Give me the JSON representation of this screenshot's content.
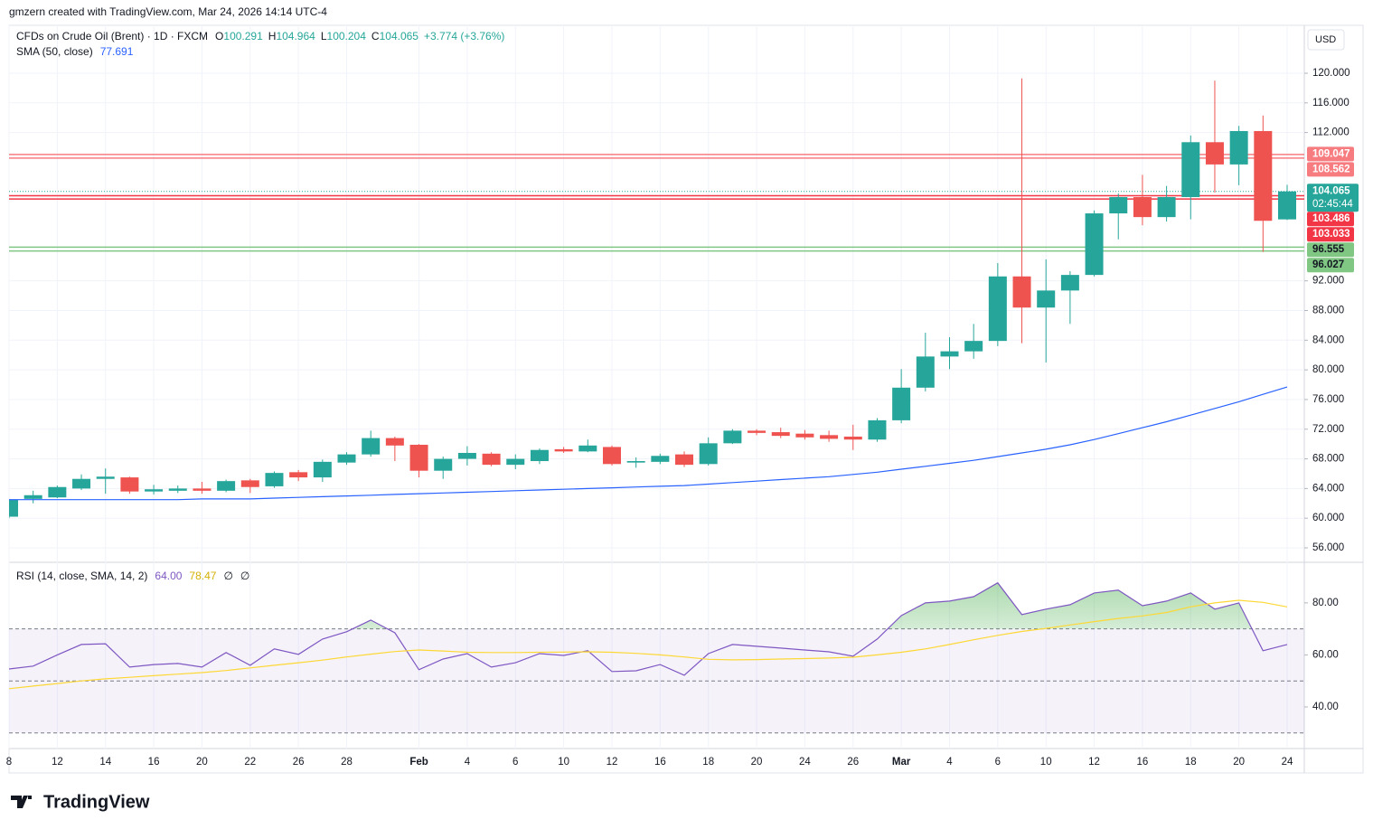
{
  "header": {
    "attribution": "gmzern created with TradingView.com, Mar 24, 2026 14:14 UTC-4",
    "currency": "USD",
    "logo": "TradingView"
  },
  "chart_data": [
    {
      "type": "candlestick",
      "title": "CFDs on Crude Oil (Brent) · 1D · FXCM",
      "ohlc_labels": [
        {
          "key": "O",
          "value": "100.291"
        },
        {
          "key": "H",
          "value": "104.964"
        },
        {
          "key": "L",
          "value": "100.204"
        },
        {
          "key": "C",
          "value": "104.065"
        }
      ],
      "change_label": "+3.774 (+3.76%)",
      "up_color": "#26a69a",
      "down_color": "#ef5350",
      "categories": [
        "8",
        null,
        "12",
        null,
        "14",
        null,
        "16",
        null,
        "20",
        null,
        "22",
        null,
        "26",
        null,
        "28",
        null,
        null,
        "Feb",
        null,
        "4",
        null,
        "6",
        null,
        "10",
        null,
        "12",
        null,
        "16",
        null,
        "18",
        null,
        "20",
        null,
        "24",
        null,
        "26",
        null,
        "Mar",
        null,
        "4",
        null,
        "6",
        null,
        "10",
        null,
        "12",
        null,
        "16",
        null,
        "18",
        null,
        "20",
        null,
        "24"
      ],
      "open": [
        60.2,
        62.6,
        62.8,
        64.0,
        65.3,
        65.5,
        63.6,
        63.7,
        64.0,
        63.7,
        65.1,
        64.3,
        66.2,
        65.5,
        67.5,
        68.6,
        70.8,
        69.9,
        66.4,
        68.0,
        68.7,
        67.2,
        67.7,
        69.3,
        69.0,
        69.6,
        67.5,
        67.6,
        68.6,
        67.3,
        70.1,
        71.8,
        71.6,
        71.4,
        71.2,
        71.0,
        70.6,
        73.2,
        77.6,
        81.8,
        82.5,
        83.9,
        92.6,
        88.4,
        90.7,
        92.8,
        101.1,
        103.3,
        100.6,
        103.3,
        110.7,
        107.7,
        112.2,
        100.291
      ],
      "high": [
        62.6,
        63.7,
        64.4,
        65.9,
        66.7,
        65.6,
        64.5,
        64.4,
        64.9,
        65.2,
        65.3,
        66.3,
        66.5,
        67.9,
        68.9,
        71.8,
        71.0,
        70.0,
        68.3,
        69.7,
        68.9,
        68.6,
        69.4,
        69.6,
        70.6,
        69.8,
        68.2,
        68.7,
        69.0,
        70.9,
        72.0,
        72.0,
        72.2,
        71.9,
        71.8,
        72.6,
        73.5,
        80.1,
        85.0,
        84.4,
        86.2,
        94.4,
        119.3,
        94.9,
        93.3,
        101.5,
        103.8,
        106.3,
        104.8,
        111.6,
        119.0,
        112.9,
        114.3,
        104.964
      ],
      "low": [
        60.0,
        62.0,
        62.7,
        63.8,
        63.3,
        63.3,
        63.2,
        63.4,
        63.3,
        63.5,
        63.4,
        64.1,
        65.0,
        64.9,
        67.2,
        68.3,
        67.7,
        65.5,
        65.3,
        67.1,
        67.0,
        66.6,
        67.3,
        68.8,
        68.9,
        67.1,
        66.8,
        67.3,
        66.9,
        67.1,
        70.0,
        71.2,
        70.8,
        70.6,
        70.3,
        69.2,
        70.3,
        72.8,
        77.1,
        80.1,
        81.5,
        83.2,
        83.6,
        81.0,
        86.2,
        92.6,
        97.6,
        99.5,
        100.0,
        100.3,
        103.9,
        104.9,
        95.9,
        100.204
      ],
      "close": [
        62.5,
        63.1,
        64.2,
        65.3,
        65.6,
        63.6,
        63.9,
        64.0,
        63.7,
        65.0,
        64.2,
        66.1,
        65.5,
        67.6,
        68.6,
        70.8,
        69.8,
        66.4,
        68.0,
        68.8,
        67.2,
        68.0,
        69.2,
        69.0,
        69.8,
        67.3,
        67.7,
        68.4,
        67.2,
        70.1,
        71.8,
        71.5,
        71.1,
        70.9,
        70.7,
        70.6,
        73.2,
        77.6,
        81.8,
        82.5,
        83.9,
        92.6,
        88.4,
        90.7,
        92.8,
        101.1,
        103.3,
        100.6,
        103.3,
        110.7,
        107.7,
        112.2,
        100.1,
        104.065
      ],
      "sma": {
        "name": "SMA (50, close)",
        "color": "#2962ff",
        "value_label": "77.691",
        "values": [
          62.5,
          62.5,
          62.5,
          62.5,
          62.5,
          62.5,
          62.5,
          62.5,
          62.6,
          62.6,
          62.6,
          62.7,
          62.8,
          62.9,
          63.0,
          63.1,
          63.2,
          63.3,
          63.4,
          63.5,
          63.6,
          63.7,
          63.8,
          63.9,
          64.0,
          64.1,
          64.2,
          64.3,
          64.4,
          64.6,
          64.8,
          65.0,
          65.2,
          65.4,
          65.6,
          65.9,
          66.2,
          66.6,
          67.0,
          67.4,
          67.8,
          68.3,
          68.8,
          69.3,
          69.9,
          70.6,
          71.4,
          72.2,
          73.0,
          73.9,
          74.8,
          75.7,
          76.7,
          77.691
        ]
      },
      "levels": [
        {
          "value": 109.047,
          "color": "#f77c80",
          "text_color": "#ffffff"
        },
        {
          "value": 108.562,
          "color": "#f77c80",
          "text_color": "#ffffff"
        },
        {
          "value": 103.486,
          "color": "#f23645",
          "text_color": "#ffffff"
        },
        {
          "value": 103.033,
          "color": "#f23645",
          "text_color": "#ffffff"
        },
        {
          "value": 96.555,
          "color": "#81c784",
          "text_color": "#131722"
        },
        {
          "value": 96.027,
          "color": "#81c784",
          "text_color": "#131722"
        }
      ],
      "last_price": 104.065,
      "countdown": "02:45:44",
      "ylim": [
        54.05,
        126.46
      ],
      "yticks": [
        {
          "value": 120,
          "label": "120.000"
        },
        {
          "value": 116,
          "label": "116.000"
        },
        {
          "value": 112,
          "label": "112.000"
        },
        {
          "value": 92,
          "label": "92.000"
        },
        {
          "value": 88,
          "label": "88.000"
        },
        {
          "value": 84,
          "label": "84.000"
        },
        {
          "value": 80,
          "label": "80.000"
        },
        {
          "value": 76,
          "label": "76.000"
        },
        {
          "value": 72,
          "label": "72.000"
        },
        {
          "value": 68,
          "label": "68.000"
        },
        {
          "value": 64,
          "label": "64.000"
        },
        {
          "value": 60,
          "label": "60.000"
        },
        {
          "value": 56,
          "label": "56.000"
        }
      ],
      "grid": true
    },
    {
      "type": "line",
      "title": "RSI (14, close, SMA, 14, 2)",
      "extras": [
        "∅",
        "∅"
      ],
      "series": [
        {
          "color": "#7e57c2",
          "last_label": "64.00",
          "values": [
            54.6,
            55.7,
            60.0,
            64.0,
            64.3,
            55.3,
            56.3,
            56.7,
            55.3,
            60.9,
            56.0,
            62.3,
            60.2,
            66.1,
            68.9,
            73.4,
            68.5,
            54.3,
            58.4,
            60.5,
            55.3,
            57.0,
            60.5,
            59.8,
            61.6,
            53.6,
            53.9,
            56.3,
            52.2,
            60.5,
            64.0,
            63.3,
            62.6,
            61.9,
            61.2,
            59.5,
            66.1,
            75.1,
            80.0,
            80.7,
            82.4,
            87.7,
            75.5,
            77.6,
            79.3,
            83.8,
            84.9,
            78.9,
            80.7,
            83.8,
            77.6,
            80.0,
            61.6,
            64.0
          ]
        },
        {
          "color": "#fdd835",
          "label_color": "#d4b106",
          "last_label": "78.47",
          "values": [
            47.0,
            48.0,
            49.0,
            50.0,
            50.8,
            51.4,
            52.0,
            52.6,
            53.2,
            54.0,
            55.0,
            56.0,
            57.0,
            58.0,
            59.2,
            60.3,
            61.3,
            61.9,
            61.5,
            61.0,
            60.9,
            60.9,
            61.0,
            61.1,
            61.2,
            61.0,
            60.6,
            60.0,
            59.2,
            58.3,
            58.1,
            58.2,
            58.4,
            58.6,
            58.8,
            59.1,
            60.0,
            61.0,
            62.3,
            64.0,
            65.8,
            67.5,
            69.0,
            70.2,
            71.5,
            72.8,
            74.0,
            75.0,
            76.3,
            78.5,
            80.0,
            81.0,
            80.2,
            78.47
          ]
        }
      ],
      "bands": [
        70,
        50,
        30
      ],
      "ylim": [
        24,
        95.6
      ],
      "yticks": [
        {
          "value": 80,
          "label": "80.00"
        },
        {
          "value": 60,
          "label": "60.00"
        },
        {
          "value": 40,
          "label": "40.00"
        }
      ]
    }
  ]
}
